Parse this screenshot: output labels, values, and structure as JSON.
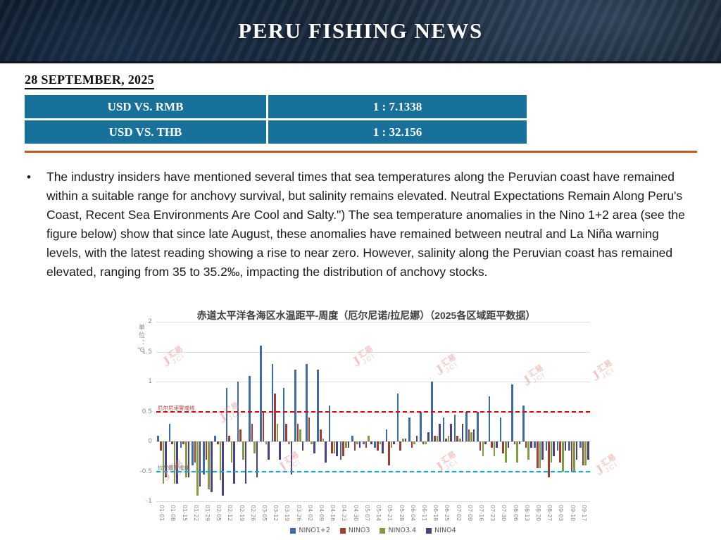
{
  "header": {
    "title": "PERU FISHING NEWS"
  },
  "date_heading": "28 SEPTEMBER, 2025",
  "exchange_table": {
    "rows": [
      {
        "label": "USD VS. RMB",
        "value": "1 : 7.1338"
      },
      {
        "label": "USD VS. THB",
        "value": "1 : 32.156"
      }
    ]
  },
  "bullet": {
    "marker": "•",
    "text": "The industry insiders have mentioned several times that sea temperatures along the Peruvian coast have remained within a suitable range for anchovy survival, but salinity remains elevated. Neutral Expectations Remain Along Peru's Coast, Recent Sea Environments Are Cool and Salty.\") The sea temperature anomalies in the Nino 1+2 area (see the figure below) show that since late August, these anomalies have remained between neutral and La Niña warning levels, with the latest reading showing a rise to near zero. However, salinity along the Peruvian coast has remained elevated, ranging from 35 to 35.2‰, impacting the distribution of anchovy stocks."
  },
  "colors": {
    "table_teal": "#17719B",
    "divider_orange": "#C0571C",
    "elnino_line": "#E00000",
    "lanina_line": "#00AEDB",
    "nino12": "#3C6CA8",
    "nino3": "#A23B32",
    "nino34": "#7F9C3F",
    "nino4": "#4C4082"
  },
  "watermark": {
    "mark": "J",
    "cn": "汇易",
    "en": "JCI"
  },
  "chart_data": {
    "type": "bar",
    "title": "赤道太平洋各海区水温距平-周度（厄尔尼诺/拉尼娜）（2025各区域距平数据）",
    "ylabel": "单位：℃",
    "ylim": [
      -1,
      2
    ],
    "ytick_step": 0.5,
    "grid": true,
    "legend_position": "bottom",
    "categories": [
      "01-01",
      "01-08",
      "01-15",
      "01-22",
      "01-29",
      "02-05",
      "02-12",
      "02-19",
      "02-26",
      "03-05",
      "03-12",
      "03-19",
      "03-26",
      "04-02",
      "04-09",
      "04-16",
      "04-23",
      "04-30",
      "05-07",
      "05-14",
      "05-21",
      "05-28",
      "06-04",
      "06-11",
      "06-18",
      "06-25",
      "07-02",
      "07-09",
      "07-16",
      "07-23",
      "07-30",
      "08-06",
      "08-13",
      "08-20",
      "08-27",
      "09-03",
      "09-10",
      "09-17"
    ],
    "series": [
      {
        "name": "NINO1+2",
        "color": "#3C6CA8",
        "values": [
          0.1,
          0.3,
          -0.1,
          -0.4,
          -0.55,
          0.1,
          0.9,
          1.0,
          1.1,
          1.6,
          1.3,
          0.9,
          1.2,
          1.3,
          1.2,
          0.6,
          -0.3,
          0.1,
          -0.05,
          -0.1,
          0.2,
          0.8,
          0.4,
          0.5,
          1.0,
          0.4,
          0.45,
          0.5,
          0.5,
          0.75,
          0.4,
          0.95,
          0.6,
          -0.1,
          -0.15,
          -0.15,
          -0.15,
          -0.1
        ]
      },
      {
        "name": "NINO3",
        "color": "#A23B32",
        "values": [
          -0.15,
          -0.05,
          -0.05,
          -0.35,
          -0.3,
          -0.05,
          0.1,
          0.2,
          0.3,
          0.5,
          0.8,
          0.3,
          0.3,
          0.4,
          0.2,
          -0.2,
          -0.25,
          -0.15,
          -0.1,
          -0.15,
          -0.4,
          -0.15,
          -0.1,
          -0.05,
          0.1,
          0.05,
          0.1,
          0.2,
          -0.15,
          -0.1,
          -0.2,
          -0.05,
          -0.1,
          -0.45,
          -0.6,
          -0.35,
          -0.5,
          -0.4
        ]
      },
      {
        "name": "NINO3.4",
        "color": "#7F9C3F",
        "values": [
          -0.7,
          -0.7,
          -0.6,
          -0.9,
          -0.8,
          -0.65,
          -0.35,
          -0.3,
          -0.2,
          -0.05,
          0.3,
          -0.05,
          0.2,
          -0.05,
          0.05,
          -0.2,
          -0.1,
          -0.05,
          0.1,
          -0.05,
          -0.1,
          0.05,
          -0.05,
          -0.05,
          0.1,
          0.1,
          0.05,
          0.15,
          -0.25,
          -0.25,
          -0.35,
          -0.35,
          -0.3,
          -0.45,
          -0.35,
          -0.5,
          -0.5,
          -0.4
        ]
      },
      {
        "name": "NINO4",
        "color": "#4C4082",
        "values": [
          -0.6,
          -0.7,
          -0.6,
          -0.75,
          -0.85,
          -0.9,
          -0.7,
          -0.7,
          -0.6,
          -0.3,
          -0.3,
          -0.55,
          -0.15,
          -0.2,
          -0.35,
          -0.25,
          -0.1,
          -0.1,
          -0.05,
          -0.2,
          -0.05,
          0.05,
          0.1,
          0.15,
          0.3,
          0.3,
          0.3,
          0.2,
          -0.05,
          -0.1,
          -0.1,
          -0.05,
          -0.1,
          -0.3,
          -0.25,
          -0.15,
          -0.3,
          -0.3
        ]
      }
    ],
    "reference_lines": [
      {
        "value": 0.5,
        "label": "厄尔尼诺警戒线",
        "color": "#E00000",
        "style": "dashed"
      },
      {
        "value": -0.5,
        "label": "拉尼娜警戒线",
        "color": "#00AEDB",
        "style": "dashed"
      }
    ]
  }
}
